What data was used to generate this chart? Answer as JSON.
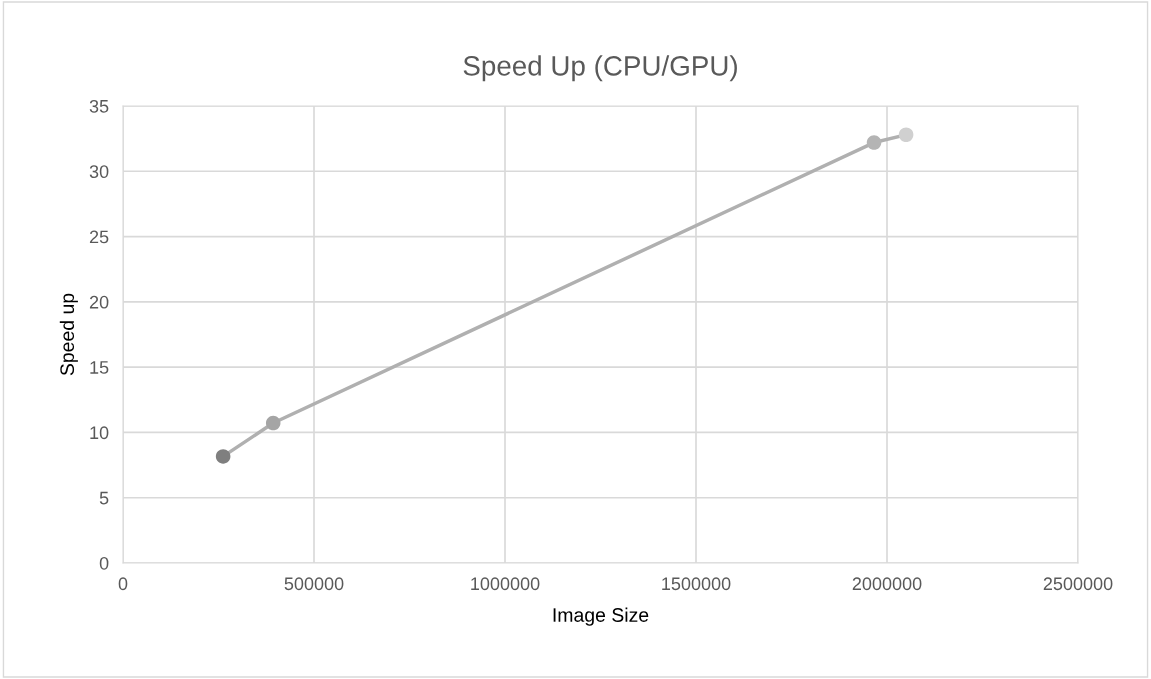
{
  "chart_data": {
    "type": "line",
    "title": "Speed Up (CPU/GPU)",
    "xlabel": "Image Size",
    "ylabel": "Speed up",
    "x": [
      262144,
      393216,
      1966080,
      2050000
    ],
    "series": [
      {
        "color": "#b0b0b0",
        "colors": [
          "#7f7f7f",
          "#a5a5a5",
          "#b4b4b4",
          "#d0d0d0"
        ],
        "values": [
          8.16,
          10.72,
          32.2,
          32.8
        ]
      }
    ],
    "xlim": [
      0,
      2500000
    ],
    "xticks": [
      0,
      500000,
      1000000,
      1500000,
      2000000,
      2500000
    ],
    "ylim": [
      0,
      35
    ],
    "yticks": [
      0,
      5,
      10,
      15,
      20,
      25,
      30,
      35
    ],
    "grid": true,
    "marker": "circle",
    "line_style": "solid"
  }
}
